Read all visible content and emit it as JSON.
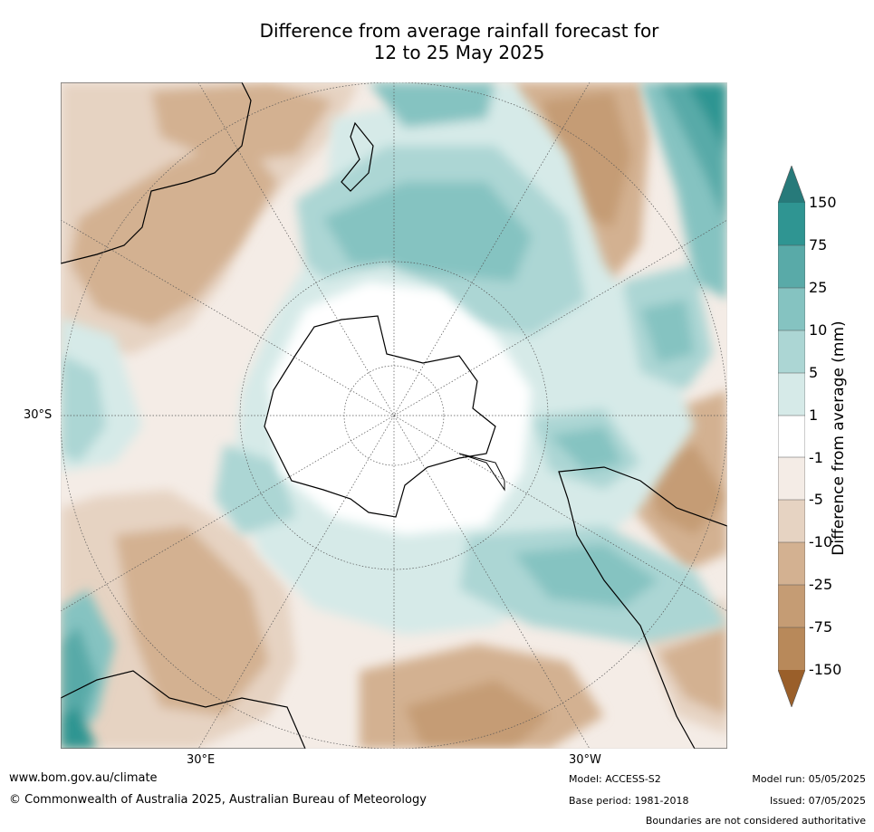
{
  "title": {
    "line1": "Difference from average rainfall forecast for",
    "line2": "12 to 25 May 2025"
  },
  "map": {
    "projection": "south-polar-stereographic",
    "lat_label": "30°S",
    "lon_labels": {
      "east": "30°E",
      "west": "30°W"
    }
  },
  "colorbar": {
    "label": "Difference from average (mm)",
    "ticks": [
      "150",
      "75",
      "25",
      "10",
      "5",
      "1",
      "-1",
      "-5",
      "-10",
      "-25",
      "-75",
      "-150"
    ],
    "colors": {
      "above_150": "#277a7a",
      "75_150": "#2f9592",
      "25_75": "#59aaa8",
      "10_25": "#85c3c1",
      "5_10": "#acd6d4",
      "1_5": "#d6eae8",
      "m1_1": "#ffffff",
      "m5_m1": "#f4ece6",
      "m10_m5": "#e6d3c2",
      "m25_m10": "#d3b191",
      "m75_m25": "#c59c74",
      "m150_m75": "#b8895a",
      "below_m150": "#9a5f2a"
    }
  },
  "footer": {
    "website": "www.bom.gov.au/climate",
    "copyright": "© Commonwealth of Australia 2025, Australian Bureau of Meteorology",
    "model": "Model: ACCESS-S2",
    "base_period": "Base period: 1981-2018",
    "model_run": "Model run: 05/05/2025",
    "issued": "Issued: 07/05/2025",
    "disclaimer": "Boundaries are not considered authoritative"
  }
}
